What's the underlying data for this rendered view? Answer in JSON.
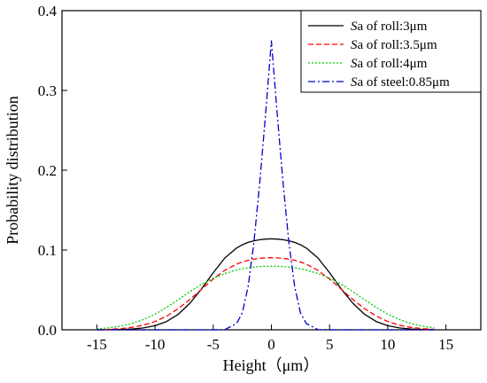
{
  "chart_data": {
    "type": "line",
    "xlabel": "Height（μm）",
    "ylabel": "Probability distribution",
    "xlim": [
      -18,
      18
    ],
    "ylim": [
      0,
      0.4
    ],
    "xticks": [
      -15,
      -10,
      -5,
      0,
      5,
      10,
      15
    ],
    "yticks": [
      0.0,
      0.1,
      0.2,
      0.3,
      0.4
    ],
    "xtick_labels": [
      "-15",
      "-10",
      "-5",
      "0",
      "5",
      "10",
      "15"
    ],
    "ytick_labels": [
      "0.0",
      "0.1",
      "0.2",
      "0.3",
      "0.4"
    ],
    "legend_position": "top-right",
    "grid": false,
    "x": [
      -15,
      -14,
      -13,
      -12,
      -11,
      -10,
      -9,
      -8,
      -7,
      -6,
      -5,
      -4,
      -3,
      -2.5,
      -2,
      -1.5,
      -1,
      -0.5,
      0,
      0.5,
      1,
      1.5,
      2,
      2.5,
      3,
      4,
      5,
      6,
      7,
      8,
      9,
      10,
      11,
      12,
      13,
      14
    ],
    "series": [
      {
        "name_prefix": "S",
        "name": "a of roll:3μm",
        "color": "#000000",
        "dash": "solid",
        "values": [
          0.0,
          0.0001,
          0.0003,
          0.0009,
          0.0023,
          0.0051,
          0.0104,
          0.0196,
          0.0333,
          0.0513,
          0.0715,
          0.09,
          0.1025,
          0.1066,
          0.1095,
          0.1115,
          0.1129,
          0.1137,
          0.114,
          0.1137,
          0.1129,
          0.1115,
          0.1095,
          0.1066,
          0.1025,
          0.09,
          0.0715,
          0.0513,
          0.0333,
          0.0196,
          0.0104,
          0.0051,
          0.0023,
          0.0009,
          0.0003,
          0.0001
        ]
      },
      {
        "name_prefix": "S",
        "name": "a of roll:3.5μm",
        "color": "#ff0000",
        "dash": "dashed",
        "values": [
          0.0002,
          0.0006,
          0.0014,
          0.003,
          0.0058,
          0.0104,
          0.0172,
          0.0265,
          0.038,
          0.0509,
          0.0637,
          0.0746,
          0.0822,
          0.085,
          0.0871,
          0.0886,
          0.0896,
          0.0901,
          0.0903,
          0.0901,
          0.0896,
          0.0886,
          0.0871,
          0.085,
          0.0822,
          0.0746,
          0.0637,
          0.0509,
          0.038,
          0.0265,
          0.0172,
          0.0104,
          0.0058,
          0.003,
          0.0014,
          0.0006
        ]
      },
      {
        "name_prefix": "S",
        "name": "a of roll:4μm",
        "color": "#00cc00",
        "dash": "dotted",
        "values": [
          0.0011,
          0.0024,
          0.0045,
          0.0079,
          0.0129,
          0.0197,
          0.0281,
          0.0378,
          0.0478,
          0.0571,
          0.0646,
          0.0705,
          0.0749,
          0.0765,
          0.0777,
          0.0786,
          0.0793,
          0.0797,
          0.0798,
          0.0797,
          0.0793,
          0.0786,
          0.0777,
          0.0765,
          0.0749,
          0.0705,
          0.0646,
          0.0571,
          0.0478,
          0.0378,
          0.0281,
          0.0197,
          0.0129,
          0.0079,
          0.0045,
          0.0024
        ]
      },
      {
        "name_prefix": "S",
        "name": "a of steel:0.85μm",
        "color": "#0000cc",
        "dash": "dashdot",
        "values": [
          0.0,
          0.0,
          0.0,
          0.0,
          0.0,
          0.0,
          0.0,
          0.0,
          0.0,
          0.0,
          0.0,
          0.0002,
          0.0078,
          0.0213,
          0.054,
          0.11,
          0.185,
          0.27,
          0.362,
          0.27,
          0.185,
          0.11,
          0.054,
          0.0213,
          0.0078,
          0.0002,
          0.0,
          0.0,
          0.0,
          0.0,
          0.0,
          0.0,
          0.0,
          0.0,
          0.0,
          0.0
        ]
      }
    ]
  }
}
